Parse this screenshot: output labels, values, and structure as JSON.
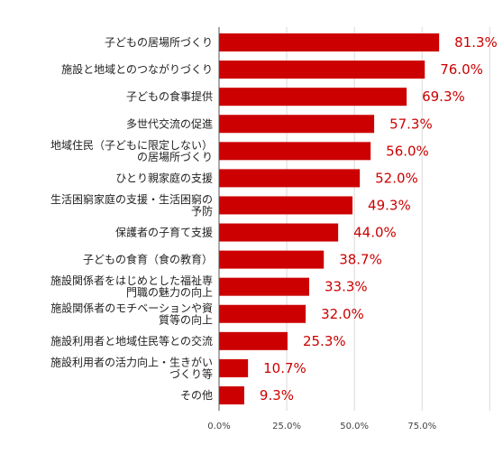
{
  "chart_data": {
    "type": "bar",
    "orientation": "horizontal",
    "categories": [
      [
        "子どもの居場所づくり"
      ],
      [
        "施設と地域とのつながりづくり"
      ],
      [
        "子どもの食事提供"
      ],
      [
        "多世代交流の促進"
      ],
      [
        "地域住民（子どもに限定しない）",
        "の居場所づくり"
      ],
      [
        "ひとり親家庭の支援"
      ],
      [
        "生活困窮家庭の支援・生活困窮の",
        "予防"
      ],
      [
        "保護者の子育て支援"
      ],
      [
        "子どもの食育（食の教育）"
      ],
      [
        "施設関係者をはじめとした福祉専",
        "門職の魅力の向上"
      ],
      [
        "施設関係者のモチベーションや資",
        "質等の向上"
      ],
      [
        "施設利用者と地域住民等との交流"
      ],
      [
        "施設利用者の活力向上・生きがい",
        "づくり等"
      ],
      [
        "その他"
      ]
    ],
    "values": [
      81.3,
      76.0,
      69.3,
      57.3,
      56.0,
      52.0,
      49.3,
      44.0,
      38.7,
      33.3,
      32.0,
      25.3,
      10.7,
      9.3
    ],
    "value_labels": [
      "81.3%",
      "76.0%",
      "69.3%",
      "57.3%",
      "56.0%",
      "52.0%",
      "49.3%",
      "44.0%",
      "38.7%",
      "33.3%",
      "32.0%",
      "25.3%",
      "10.7%",
      "9.3%"
    ],
    "x_ticks": [
      0,
      25,
      50,
      75
    ],
    "x_tick_labels": [
      "0.0%",
      "25.0%",
      "50.0%",
      "75.0%"
    ],
    "xlim": [
      0,
      100
    ],
    "grid": true,
    "legend": "none",
    "colors": {
      "bar": "#cc0000",
      "label": "#cc0000",
      "grid": "#d9d9d9",
      "axis": "#555555"
    }
  }
}
